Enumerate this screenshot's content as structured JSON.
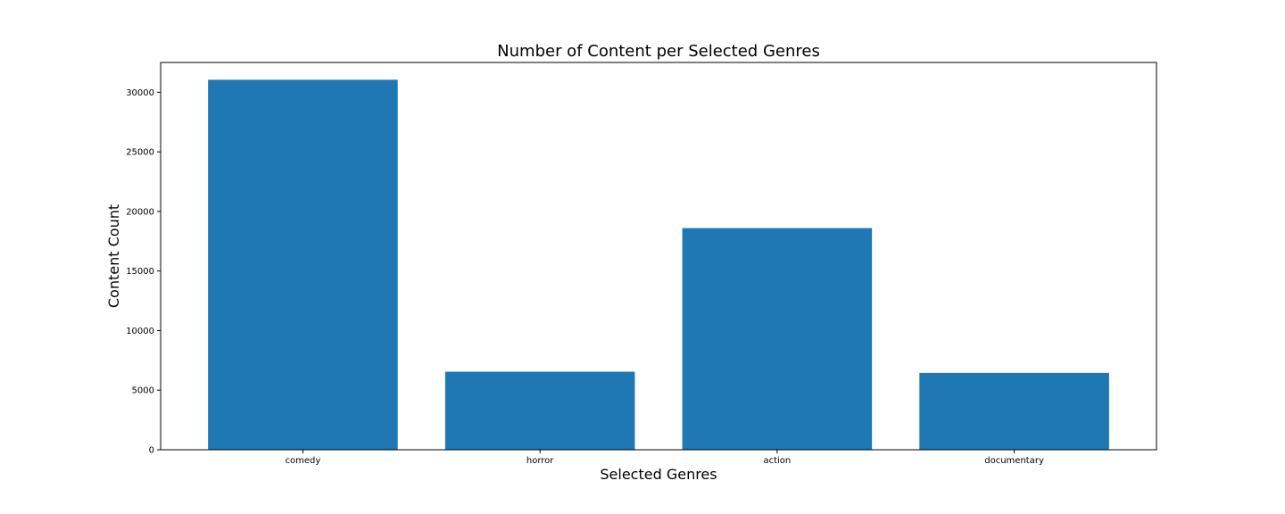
{
  "chart_data": {
    "type": "bar",
    "title": "Number of Content per Selected Genres",
    "xlabel": "Selected Genres",
    "ylabel": "Content Count",
    "categories": [
      "comedy",
      "horror",
      "action",
      "documentary"
    ],
    "values": [
      31050,
      6550,
      18600,
      6450
    ],
    "ylim": [
      0,
      32500
    ],
    "yticks": [
      0,
      5000,
      10000,
      15000,
      20000,
      25000,
      30000
    ],
    "ytick_labels": [
      "0",
      "5000",
      "10000",
      "15000",
      "20000",
      "25000",
      "30000"
    ],
    "grid": false,
    "legend": "none",
    "bar_color": "#1f77b4"
  }
}
